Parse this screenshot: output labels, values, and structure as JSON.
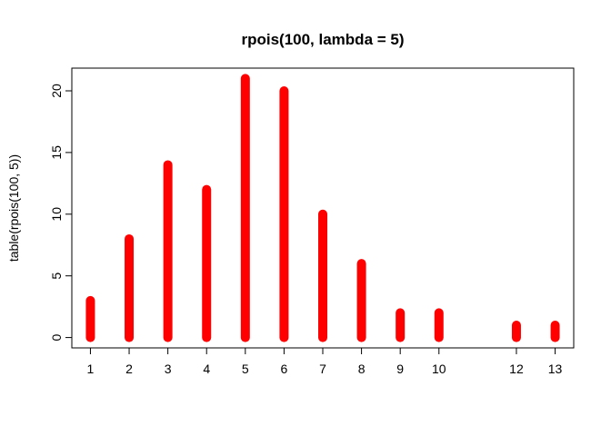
{
  "chart_data": {
    "type": "bar",
    "title": "rpois(100, lambda = 5)",
    "xlabel": "",
    "ylabel": "table(rpois(100, 5))",
    "x": [
      1,
      2,
      3,
      4,
      5,
      6,
      7,
      8,
      9,
      10,
      12,
      13
    ],
    "values": [
      3,
      8,
      14,
      12,
      21,
      20,
      10,
      6,
      2,
      2,
      1,
      1
    ],
    "x_ticks": [
      "1",
      "2",
      "3",
      "4",
      "5",
      "6",
      "7",
      "8",
      "9",
      "10",
      "12",
      "13"
    ],
    "y_ticks": [
      0,
      5,
      10,
      15,
      20
    ],
    "xlim": [
      0.52,
      13.48
    ],
    "ylim": [
      -0.84,
      21.84
    ],
    "bar_color": "#ff0000",
    "grid": false,
    "box": true
  }
}
